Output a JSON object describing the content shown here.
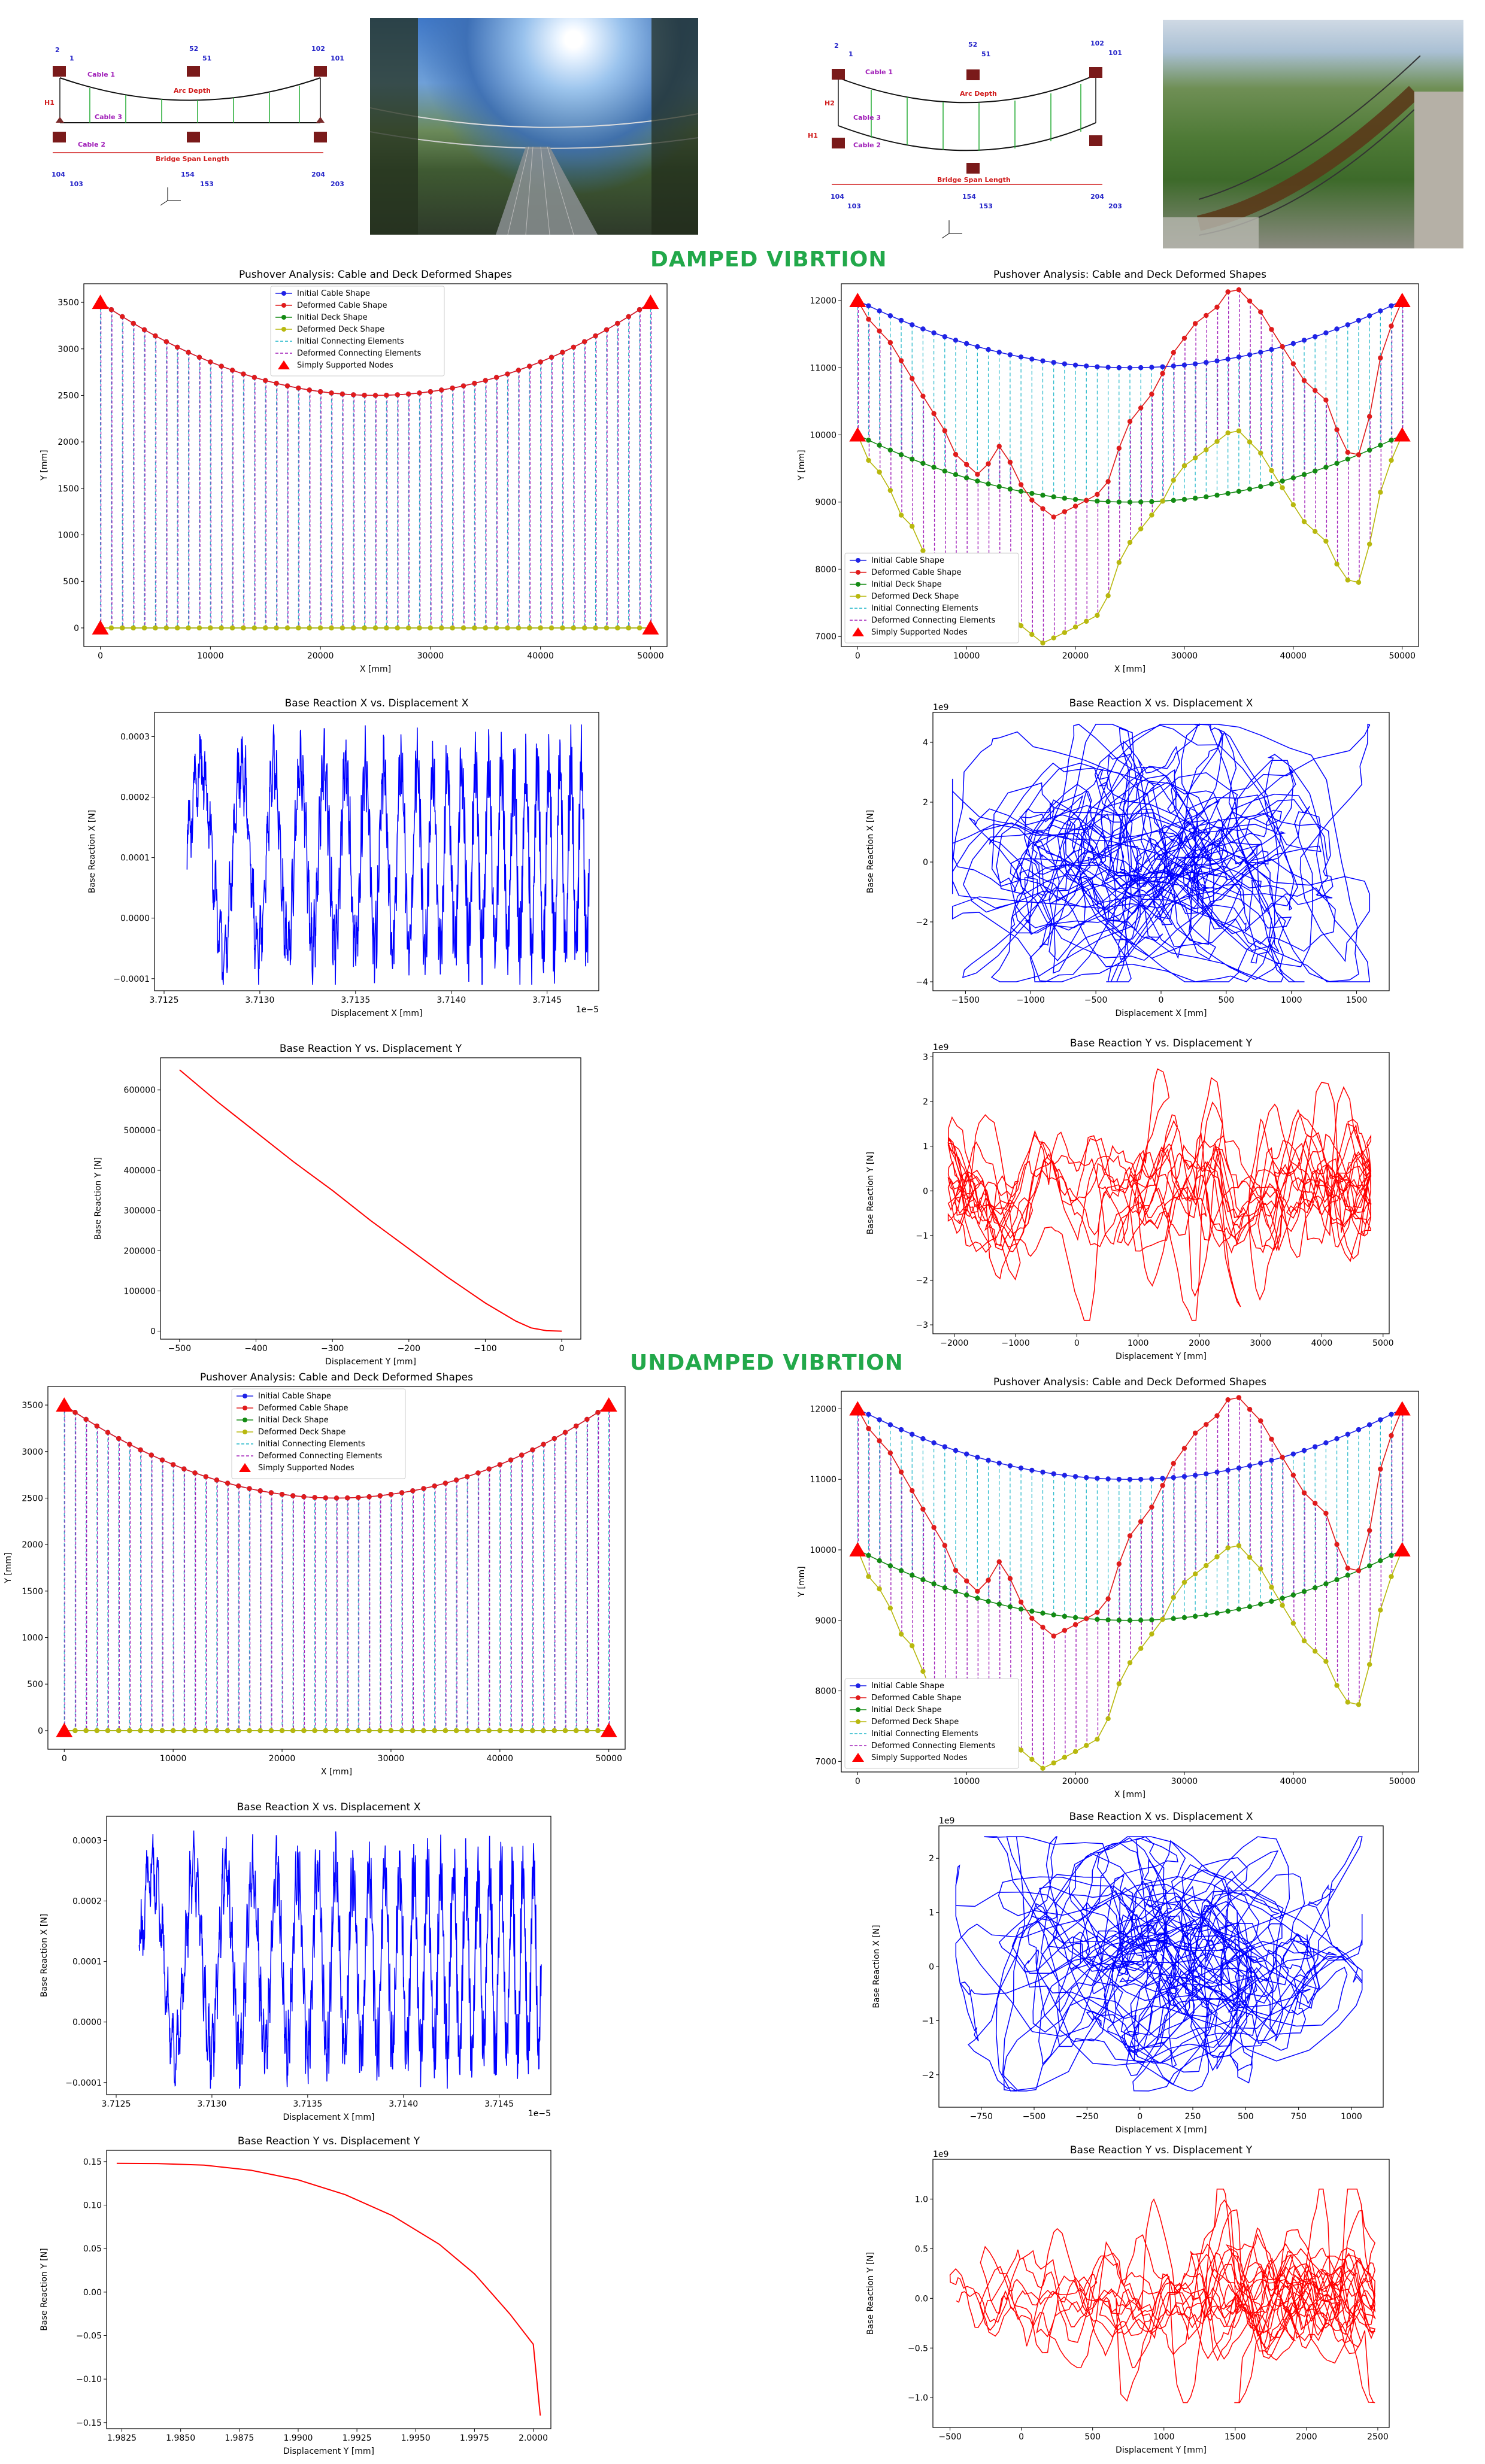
{
  "colors": {
    "section_title": "#22a84a",
    "initial_cable": "#1f22e6",
    "deformed_cable": "#e01b1b",
    "initial_deck": "#138a13",
    "deformed_deck": "#b8b80e",
    "initial_connect": "#1fb6c9",
    "deformed_connect": "#a01fb8",
    "support": "#ff0000",
    "rx_line": "#0000ff",
    "ry_line": "#ff0000"
  },
  "sections": {
    "damped": "DAMPED VIBRTION",
    "undamped": "UNDAMPED VIBRTION"
  },
  "diagram_left": {
    "labels": {
      "cable1": "Cable 1",
      "cable2": "Cable 2",
      "cable3": "Cable 3",
      "arc": "Arc Depth",
      "h1": "H1",
      "span": "Bridge Span Length"
    },
    "nodes": {
      "n2": "2",
      "n1": "1",
      "n52": "52",
      "n51": "51",
      "n102": "102",
      "n101": "101",
      "n104": "104",
      "n103": "103",
      "n154": "154",
      "n153": "153",
      "n204": "204",
      "n203": "203"
    }
  },
  "diagram_right": {
    "labels": {
      "cable1": "Cable 1",
      "cable2": "Cable 2",
      "cable3": "Cable 3",
      "arc": "Arc Depth",
      "h1": "H1",
      "h2": "H2",
      "span": "Bridge Span Length"
    },
    "nodes": {
      "n2": "2",
      "n1": "1",
      "n52": "52",
      "n51": "51",
      "n102": "102",
      "n101": "101",
      "n104": "104",
      "n103": "103",
      "n154": "154",
      "n153": "153",
      "n204": "204",
      "n203": "203"
    }
  },
  "chart_data": [
    {
      "id": "damped-left-shape",
      "type": "line",
      "title": "Pushover Analysis: Cable and Deck Deformed Shapes",
      "xlabel": "X [mm]",
      "ylabel": "Y [mm]",
      "xlim": [
        -1500,
        51500
      ],
      "ylim": [
        -200,
        3700
      ],
      "xticks": [
        0,
        10000,
        20000,
        30000,
        40000,
        50000
      ],
      "yticks": [
        0,
        500,
        1000,
        1500,
        2000,
        2500,
        3000,
        3500
      ],
      "legend": [
        "Initial Cable Shape",
        "Deformed Cable Shape",
        "Initial Deck Shape",
        "Deformed Deck Shape",
        "Initial Connecting Elements",
        "Deformed Connecting Elements",
        "Simply Supported Nodes"
      ],
      "legend_position": "top-center",
      "span": 50000,
      "nodes": 51,
      "cable": {
        "ends": 3500,
        "sag": 1000
      },
      "deck": {
        "ends": 0,
        "sag": 0
      },
      "cable_deformed_offsets": [],
      "deck_deformed_offsets": []
    },
    {
      "id": "damped-right-shape",
      "type": "line",
      "title": "Pushover Analysis: Cable and Deck Deformed Shapes",
      "xlabel": "X [mm]",
      "ylabel": "Y [mm]",
      "xlim": [
        -1500,
        51500
      ],
      "ylim": [
        6850,
        12250
      ],
      "xticks": [
        0,
        10000,
        20000,
        30000,
        40000,
        50000
      ],
      "yticks": [
        7000,
        8000,
        9000,
        10000,
        11000,
        12000
      ],
      "legend": [
        "Initial Cable Shape",
        "Deformed Cable Shape",
        "Initial Deck Shape",
        "Deformed Deck Shape",
        "Initial Connecting Elements",
        "Deformed Connecting Elements",
        "Simply Supported Nodes"
      ],
      "legend_position": "bottom-left",
      "span": 50000,
      "nodes": 51,
      "cable": {
        "ends": 12000,
        "sag": 1000
      },
      "deck": {
        "ends": 10000,
        "sag": 1000
      },
      "cable_deformed_offsets": [
        0,
        -200,
        -300,
        -400,
        -600,
        -800,
        -1000,
        -1200,
        -1400,
        -1700,
        -1800,
        -1900,
        -1700,
        -1400,
        -1600,
        -1900,
        -2100,
        -2200,
        -2300,
        -2200,
        -2100,
        -2000,
        -1900,
        -1700,
        -1200,
        -800,
        -600,
        -400,
        -100,
        200,
        400,
        600,
        700,
        800,
        1000,
        1000,
        800,
        600,
        300,
        0,
        -300,
        -600,
        -800,
        -1000,
        -1500,
        -1900,
        -2000,
        -1500,
        -700,
        -300,
        0
      ],
      "deck_deformed_offsets": [
        0,
        -300,
        -400,
        -600,
        -900,
        -1000,
        -1300,
        -1600,
        -1900,
        -1500,
        -1800,
        -2000,
        -1700,
        -1400,
        -1800,
        -2000,
        -2100,
        -2200,
        -2100,
        -2000,
        -1900,
        -1800,
        -1700,
        -1400,
        -900,
        -600,
        -400,
        -200,
        0,
        300,
        500,
        600,
        700,
        800,
        900,
        900,
        700,
        500,
        200,
        -100,
        -400,
        -700,
        -900,
        -1100,
        -1500,
        -1800,
        -1900,
        -1400,
        -700,
        -300,
        0
      ]
    },
    {
      "id": "damped-left-rx",
      "type": "line",
      "title": "Base Reaction X vs. Displacement X",
      "xlabel": "Displacement X [mm]",
      "ylabel": "Base Reaction X [N]",
      "xlim": [
        3.71245,
        3.71477
      ],
      "ylim": [
        -0.00012,
        0.00034
      ],
      "xticks": [
        3.7125,
        3.713,
        3.7135,
        3.714,
        3.7145
      ],
      "xtick_labels": [
        "3.7125",
        "3.7130",
        "3.7135",
        "3.7140",
        "3.7145"
      ],
      "yticks": [
        -0.0001,
        0.0,
        0.0001,
        0.0002,
        0.0003
      ],
      "ytick_labels": [
        "−0.0001",
        "0.0000",
        "0.0001",
        "0.0002",
        "0.0003"
      ],
      "x_offset_text": "1e−5",
      "signal": {
        "kind": "chirp",
        "x0": 3.71262,
        "x1": 3.71472,
        "amp": 0.00015,
        "center": 0.0001,
        "seed": 3
      }
    },
    {
      "id": "damped-right-rx",
      "type": "line",
      "title": "Base Reaction X vs. Displacement X",
      "xlabel": "Displacement X [mm]",
      "ylabel": "Base Reaction X [N]",
      "xlim": [
        -1750,
        1750
      ],
      "ylim": [
        -4.3,
        5.0
      ],
      "xticks": [
        -1500,
        -1000,
        -500,
        0,
        500,
        1000,
        1500
      ],
      "xtick_labels": [
        "−1500",
        "−1000",
        "−500",
        "0",
        "500",
        "1000",
        "1500"
      ],
      "yticks": [
        -4,
        -2,
        0,
        2,
        4
      ],
      "ytick_labels": [
        "−4",
        "−2",
        "0",
        "2",
        "4"
      ],
      "y_offset_text": "1e9",
      "signal": {
        "kind": "cloud",
        "xr": [
          -1600,
          1600
        ],
        "yr": [
          -4.0,
          4.6
        ],
        "seed": 7
      }
    },
    {
      "id": "damped-left-ry",
      "type": "line",
      "title": "Base Reaction Y vs. Displacement Y",
      "xlabel": "Displacement Y [mm]",
      "ylabel": "Base Reaction Y [N]",
      "xlim": [
        -525,
        25
      ],
      "ylim": [
        -20000,
        680000
      ],
      "xticks": [
        -500,
        -400,
        -300,
        -200,
        -100,
        0
      ],
      "xtick_labels": [
        "−500",
        "−400",
        "−300",
        "−200",
        "−100",
        "0"
      ],
      "yticks": [
        0,
        100000,
        200000,
        300000,
        400000,
        500000,
        600000
      ],
      "ytick_labels": [
        "0",
        "100000",
        "200000",
        "300000",
        "400000",
        "500000",
        "600000"
      ],
      "signal": {
        "kind": "curve",
        "points": [
          [
            -500,
            650000
          ],
          [
            -450,
            570000
          ],
          [
            -400,
            495000
          ],
          [
            -350,
            420000
          ],
          [
            -300,
            350000
          ],
          [
            -250,
            275000
          ],
          [
            -200,
            205000
          ],
          [
            -150,
            135000
          ],
          [
            -100,
            70000
          ],
          [
            -60,
            25000
          ],
          [
            -40,
            8000
          ],
          [
            -20,
            1000
          ],
          [
            0,
            0
          ]
        ]
      }
    },
    {
      "id": "damped-right-ry",
      "type": "line",
      "title": "Base Reaction Y vs. Displacement Y",
      "xlabel": "Displacement Y [mm]",
      "ylabel": "Base Reaction Y [N]",
      "xlim": [
        -2350,
        5100
      ],
      "ylim": [
        -3.2,
        3.1
      ],
      "xticks": [
        -2000,
        -1000,
        0,
        1000,
        2000,
        3000,
        4000,
        5000
      ],
      "xtick_labels": [
        "−2000",
        "−1000",
        "0",
        "1000",
        "2000",
        "3000",
        "4000",
        "5000"
      ],
      "yticks": [
        -3,
        -2,
        -1,
        0,
        1,
        2,
        3
      ],
      "ytick_labels": [
        "−3",
        "−2",
        "−1",
        "0",
        "1",
        "2",
        "3"
      ],
      "y_offset_text": "1e9",
      "signal": {
        "kind": "band",
        "xr": [
          -2100,
          4800
        ],
        "yr": [
          -2.9,
          2.8
        ],
        "seed": 11
      }
    },
    {
      "id": "undamped-left-shape",
      "type": "line",
      "title": "Pushover Analysis: Cable and Deck Deformed Shapes",
      "xlabel": "X [mm]",
      "ylabel": "Y [mm]",
      "xlim": [
        -1500,
        51500
      ],
      "ylim": [
        -200,
        3700
      ],
      "xticks": [
        0,
        10000,
        20000,
        30000,
        40000,
        50000
      ],
      "yticks": [
        0,
        500,
        1000,
        1500,
        2000,
        2500,
        3000,
        3500
      ],
      "legend": [
        "Initial Cable Shape",
        "Deformed Cable Shape",
        "Initial Deck Shape",
        "Deformed Deck Shape",
        "Initial Connecting Elements",
        "Deformed Connecting Elements",
        "Simply Supported Nodes"
      ],
      "legend_position": "top-center",
      "span": 50000,
      "nodes": 51,
      "cable": {
        "ends": 3500,
        "sag": 1000
      },
      "deck": {
        "ends": 0,
        "sag": 0
      },
      "cable_deformed_offsets": [],
      "deck_deformed_offsets": []
    },
    {
      "id": "undamped-right-shape",
      "type": "line",
      "title": "Pushover Analysis: Cable and Deck Deformed Shapes",
      "xlabel": "X [mm]",
      "ylabel": "Y [mm]",
      "xlim": [
        -1500,
        51500
      ],
      "ylim": [
        6850,
        12250
      ],
      "xticks": [
        0,
        10000,
        20000,
        30000,
        40000,
        50000
      ],
      "yticks": [
        7000,
        8000,
        9000,
        10000,
        11000,
        12000
      ],
      "legend": [
        "Initial Cable Shape",
        "Deformed Cable Shape",
        "Initial Deck Shape",
        "Deformed Deck Shape",
        "Initial Connecting Elements",
        "Deformed Connecting Elements",
        "Simply Supported Nodes"
      ],
      "legend_position": "bottom-left",
      "span": 50000,
      "nodes": 51,
      "cable": {
        "ends": 12000,
        "sag": 1000
      },
      "deck": {
        "ends": 10000,
        "sag": 1000
      },
      "cable_deformed_offsets": [
        0,
        -200,
        -300,
        -400,
        -600,
        -800,
        -1000,
        -1200,
        -1400,
        -1700,
        -1800,
        -1900,
        -1700,
        -1400,
        -1600,
        -1900,
        -2100,
        -2200,
        -2300,
        -2200,
        -2100,
        -2000,
        -1900,
        -1700,
        -1200,
        -800,
        -600,
        -400,
        -100,
        200,
        400,
        600,
        700,
        800,
        1000,
        1000,
        800,
        600,
        300,
        0,
        -300,
        -600,
        -800,
        -1000,
        -1500,
        -1900,
        -2000,
        -1500,
        -700,
        -300,
        0
      ],
      "deck_deformed_offsets": [
        0,
        -300,
        -400,
        -600,
        -900,
        -1000,
        -1300,
        -1600,
        -1900,
        -1500,
        -1800,
        -2000,
        -1700,
        -1400,
        -1800,
        -2000,
        -2100,
        -2200,
        -2100,
        -2000,
        -1900,
        -1800,
        -1700,
        -1400,
        -900,
        -600,
        -400,
        -200,
        0,
        300,
        500,
        600,
        700,
        800,
        900,
        900,
        700,
        500,
        200,
        -100,
        -400,
        -700,
        -900,
        -1100,
        -1500,
        -1800,
        -1900,
        -1400,
        -700,
        -300,
        0
      ]
    },
    {
      "id": "undamped-left-rx",
      "type": "line",
      "title": "Base Reaction X vs. Displacement X",
      "xlabel": "Displacement X [mm]",
      "ylabel": "Base Reaction X [N]",
      "xlim": [
        3.71245,
        3.71477
      ],
      "ylim": [
        -0.00012,
        0.00034
      ],
      "xticks": [
        3.7125,
        3.713,
        3.7135,
        3.714,
        3.7145
      ],
      "xtick_labels": [
        "3.7125",
        "3.7130",
        "3.7135",
        "3.7140",
        "3.7145"
      ],
      "yticks": [
        -0.0001,
        0.0,
        0.0001,
        0.0002,
        0.0003
      ],
      "ytick_labels": [
        "−0.0001",
        "0.0000",
        "0.0001",
        "0.0002",
        "0.0003"
      ],
      "x_offset_text": "1e−5",
      "signal": {
        "kind": "chirp",
        "x0": 3.71262,
        "x1": 3.71472,
        "amp": 0.00015,
        "center": 0.0001,
        "seed": 5
      }
    },
    {
      "id": "undamped-right-rx",
      "type": "line",
      "title": "Base Reaction X vs. Displacement X",
      "xlabel": "Displacement X [mm]",
      "ylabel": "Base Reaction X [N]",
      "xlim": [
        -950,
        1150
      ],
      "ylim": [
        -2.6,
        2.6
      ],
      "xticks": [
        -750,
        -500,
        -250,
        0,
        250,
        500,
        750,
        1000
      ],
      "xtick_labels": [
        "−750",
        "−500",
        "−250",
        "0",
        "250",
        "500",
        "750",
        "1000"
      ],
      "yticks": [
        -2,
        -1,
        0,
        1,
        2
      ],
      "ytick_labels": [
        "−2",
        "−1",
        "0",
        "1",
        "2"
      ],
      "y_offset_text": "1e9",
      "signal": {
        "kind": "cloud",
        "xr": [
          -870,
          1050
        ],
        "yr": [
          -2.3,
          2.4
        ],
        "seed": 13
      }
    },
    {
      "id": "undamped-left-ry",
      "type": "line",
      "title": "Base Reaction Y vs. Displacement Y",
      "xlabel": "Displacement Y [mm]",
      "ylabel": "Base Reaction Y [N]",
      "xlim": [
        1.98185,
        2.00075
      ],
      "ylim": [
        -0.157,
        0.163
      ],
      "xticks": [
        1.9825,
        1.985,
        1.9875,
        1.99,
        1.9925,
        1.995,
        1.9975,
        2.0
      ],
      "xtick_labels": [
        "1.9825",
        "1.9850",
        "1.9875",
        "1.9900",
        "1.9925",
        "1.9950",
        "1.9975",
        "2.0000"
      ],
      "yticks": [
        -0.15,
        -0.1,
        -0.05,
        0.0,
        0.05,
        0.1,
        0.15
      ],
      "ytick_labels": [
        "−0.15",
        "−0.10",
        "−0.05",
        "0.00",
        "0.05",
        "0.10",
        "0.15"
      ],
      "signal": {
        "kind": "curve",
        "points": [
          [
            1.98228,
            0.148
          ],
          [
            1.984,
            0.1478
          ],
          [
            1.986,
            0.146
          ],
          [
            1.988,
            0.14
          ],
          [
            1.99,
            0.129
          ],
          [
            1.992,
            0.112
          ],
          [
            1.994,
            0.088
          ],
          [
            1.996,
            0.055
          ],
          [
            1.9975,
            0.021
          ],
          [
            1.999,
            -0.025
          ],
          [
            2.0,
            -0.06
          ],
          [
            2.0003,
            -0.142
          ]
        ]
      }
    },
    {
      "id": "undamped-right-ry",
      "type": "line",
      "title": "Base Reaction Y vs. Displacement Y",
      "xlabel": "Displacement Y [mm]",
      "ylabel": "Base Reaction Y [N]",
      "xlim": [
        -620,
        2580
      ],
      "ylim": [
        -1.3,
        1.4
      ],
      "xticks": [
        -500,
        0,
        500,
        1000,
        1500,
        2000,
        2500
      ],
      "xtick_labels": [
        "−500",
        "0",
        "500",
        "1000",
        "1500",
        "2000",
        "2500"
      ],
      "yticks": [
        -1.0,
        -0.5,
        0.0,
        0.5,
        1.0
      ],
      "ytick_labels": [
        "−1.0",
        "−0.5",
        "0.0",
        "0.5",
        "1.0"
      ],
      "y_offset_text": "1e9",
      "signal": {
        "kind": "band",
        "xr": [
          -500,
          2480
        ],
        "yr": [
          -1.05,
          1.1
        ],
        "seed": 17
      }
    }
  ]
}
